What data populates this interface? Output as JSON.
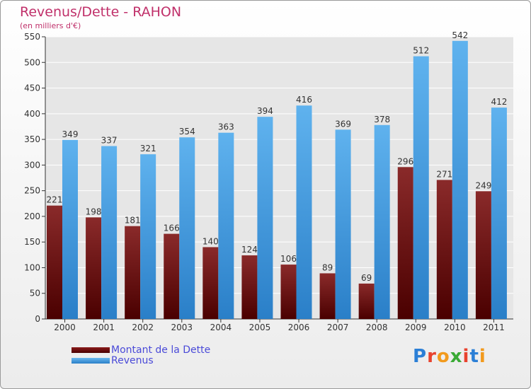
{
  "chart_data": {
    "type": "bar",
    "title": "Revenus/Dette - RAHON",
    "subtitle": "(en milliers d'€)",
    "categories": [
      "2000",
      "2001",
      "2002",
      "2003",
      "2004",
      "2005",
      "2006",
      "2007",
      "2008",
      "2009",
      "2010",
      "2011"
    ],
    "series": [
      {
        "name": "Montant de la Dette",
        "color": "#6b0f12",
        "values": [
          221,
          198,
          181,
          166,
          140,
          124,
          106,
          89,
          69,
          296,
          271,
          249
        ]
      },
      {
        "name": "Revenus",
        "color": "#4aa3e6",
        "values": [
          349,
          337,
          321,
          354,
          363,
          394,
          416,
          369,
          378,
          512,
          542,
          412
        ]
      }
    ],
    "ylim": [
      0,
      550
    ],
    "yticks": [
      0,
      50,
      100,
      150,
      200,
      250,
      300,
      350,
      400,
      450,
      500,
      550
    ],
    "grid": true,
    "legend_position": "bottom-left"
  },
  "logo": {
    "text": "Proxiti",
    "letter_colors": [
      "#2b7fd6",
      "#e8432f",
      "#f29a1d",
      "#3aaa35",
      "#e8432f",
      "#2b7fd6",
      "#f29a1d"
    ]
  }
}
